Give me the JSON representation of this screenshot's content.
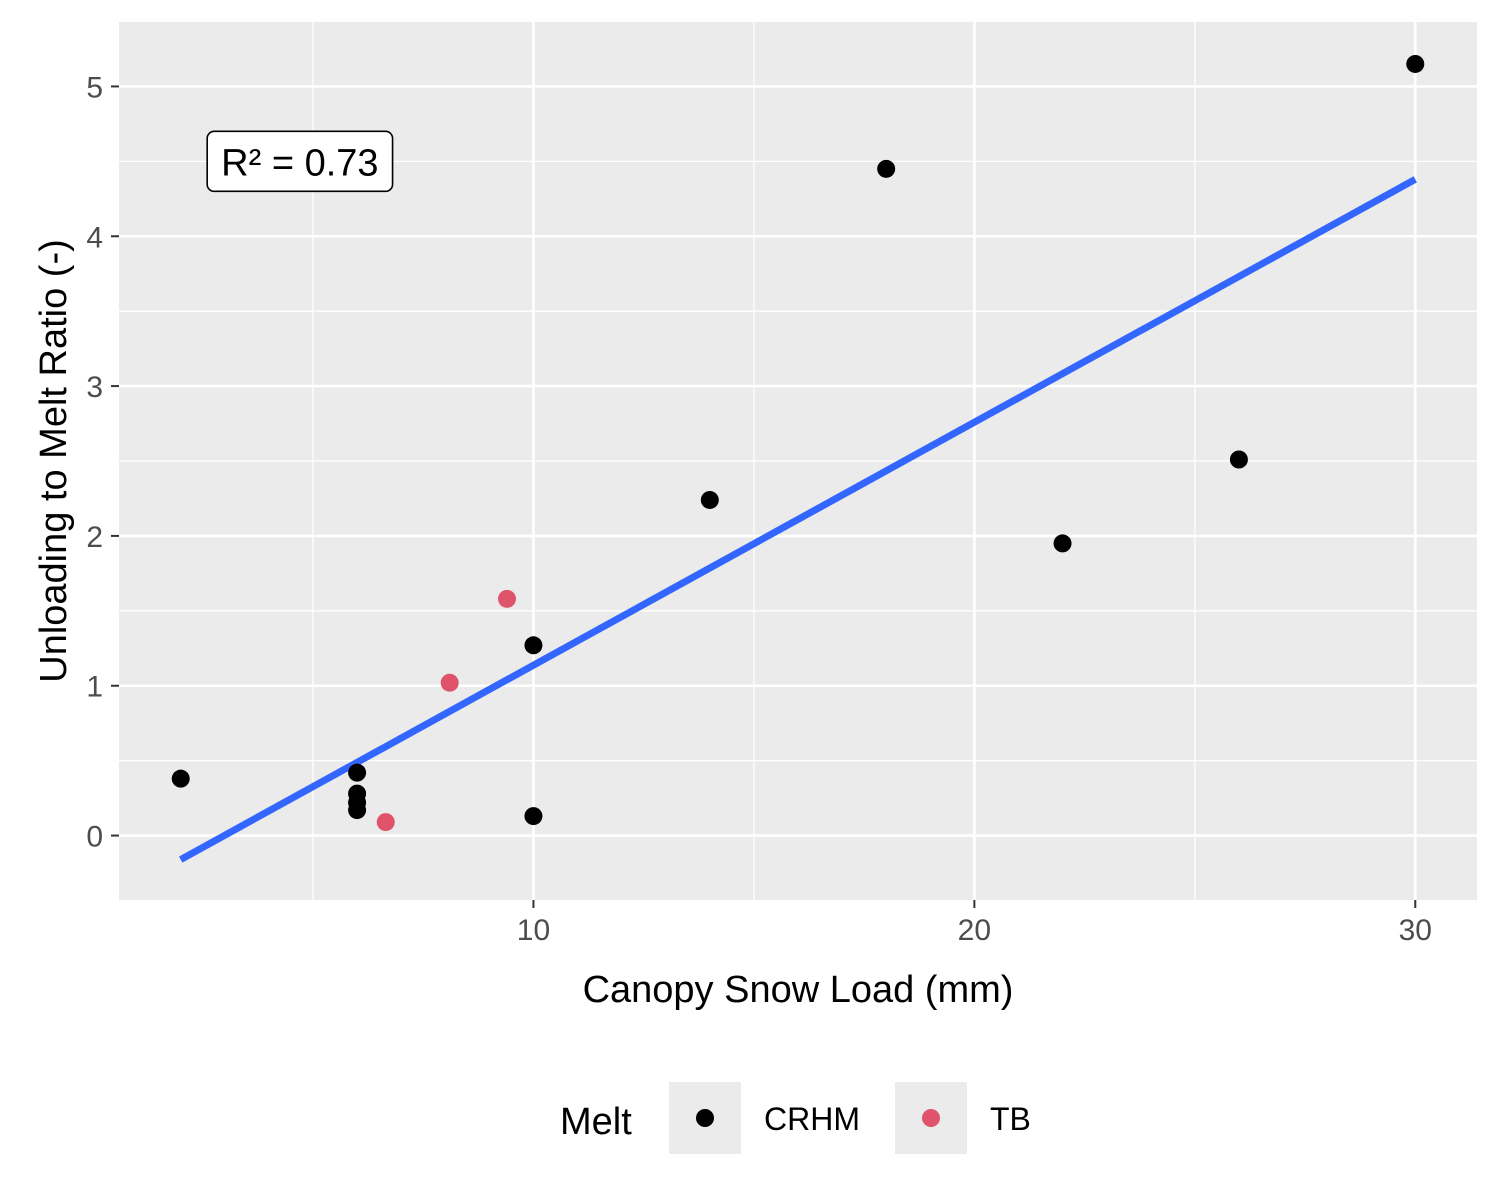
{
  "chart_data": {
    "type": "scatter",
    "xlabel": "Canopy Snow Load (mm)",
    "ylabel": "Unloading to Melt Ratio (-)",
    "xlim": [
      0.6,
      31.4
    ],
    "ylim": [
      -0.43,
      5.43
    ],
    "x_ticks": [
      10,
      20,
      30
    ],
    "y_ticks": [
      0,
      1,
      2,
      3,
      4,
      5
    ],
    "grid": true,
    "panel_color": "#ebebeb",
    "legend": {
      "title": "Melt",
      "placement": "bottom",
      "entries": [
        {
          "label": "CRHM",
          "color": "#000000"
        },
        {
          "label": "TB",
          "color": "#df536b"
        }
      ]
    },
    "series": [
      {
        "name": "CRHM",
        "color": "#000000",
        "points": [
          {
            "x": 2.0,
            "y": 0.38
          },
          {
            "x": 6.0,
            "y": 0.42
          },
          {
            "x": 6.0,
            "y": 0.28
          },
          {
            "x": 6.0,
            "y": 0.22
          },
          {
            "x": 6.0,
            "y": 0.17
          },
          {
            "x": 10.0,
            "y": 1.27
          },
          {
            "x": 10.0,
            "y": 0.13
          },
          {
            "x": 14.0,
            "y": 2.24
          },
          {
            "x": 18.0,
            "y": 4.45
          },
          {
            "x": 22.0,
            "y": 1.95
          },
          {
            "x": 26.0,
            "y": 2.51
          },
          {
            "x": 30.0,
            "y": 5.15
          }
        ]
      },
      {
        "name": "TB",
        "color": "#df536b",
        "points": [
          {
            "x": 6.65,
            "y": 0.09
          },
          {
            "x": 8.1,
            "y": 1.02
          },
          {
            "x": 9.4,
            "y": 1.58
          }
        ]
      }
    ],
    "fit_line": {
      "color": "#3366ff",
      "x": [
        2.0,
        30.0
      ],
      "y": [
        -0.16,
        4.38
      ]
    },
    "annotation": {
      "text": "R² = 0.73",
      "x": 2.6,
      "y": 4.5
    }
  }
}
